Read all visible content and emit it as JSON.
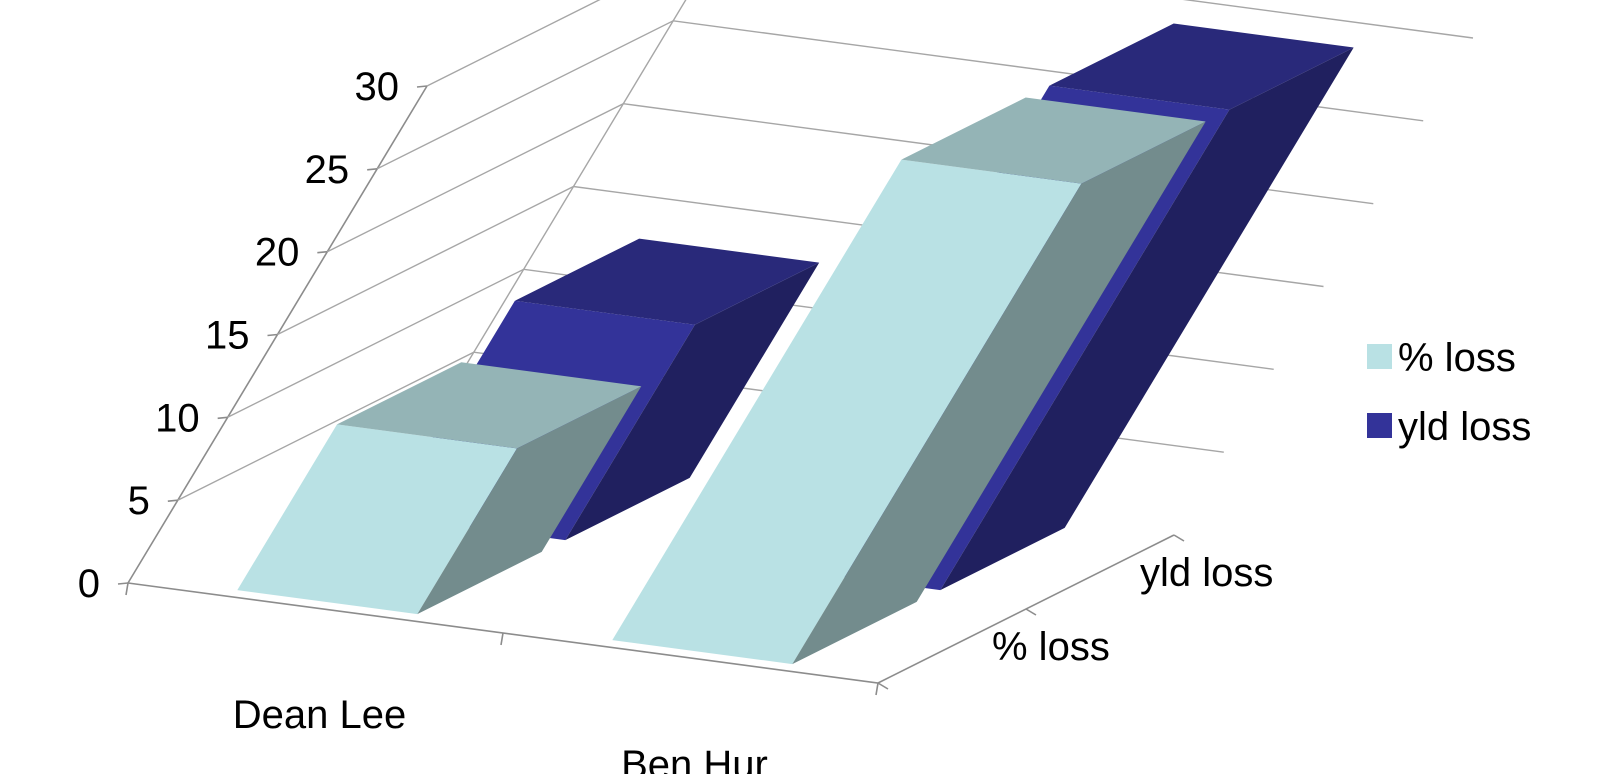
{
  "chart_data": {
    "type": "bar",
    "subtype": "3d-column",
    "categories": [
      "Dean Lee",
      "Ben Hur"
    ],
    "series": [
      {
        "name": "% loss",
        "values": [
          10,
          29
        ],
        "color": "#b9e1e4"
      },
      {
        "name": "yld loss",
        "values": [
          13,
          29
        ],
        "color": "#333399"
      }
    ],
    "depth_labels": [
      "% loss",
      "yld loss"
    ],
    "ylim": [
      0,
      30
    ],
    "yticks": [
      "0",
      "5",
      "10",
      "15",
      "20",
      "25",
      "30"
    ],
    "grid": true,
    "legend_position": "right"
  }
}
